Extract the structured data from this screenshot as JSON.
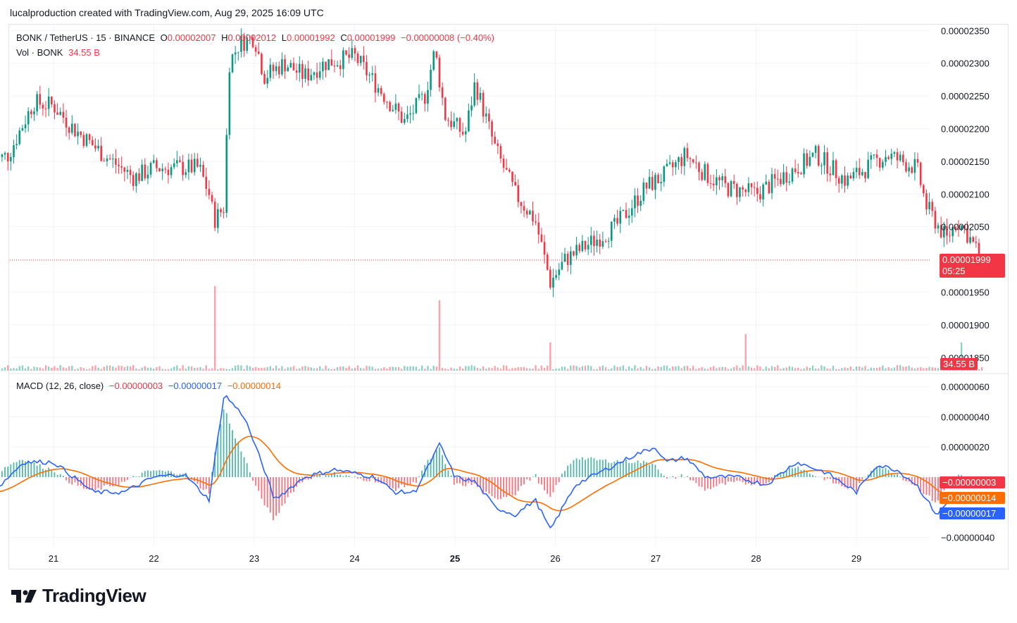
{
  "header": {
    "text": "lucalproduction created with TradingView.com, Aug 29, 2025 16:09 UTC"
  },
  "legend_main": {
    "symbol": "BONK / TetherUS · 15 · BINANCE",
    "o_label": "O",
    "o": "0.00002007",
    "h_label": "H",
    "h": "0.00002012",
    "l_label": "L",
    "l": "0.00001992",
    "c_label": "C",
    "c": "0.00001999",
    "change": "−0.00000008 (−0.40%)"
  },
  "legend_vol": {
    "label": "Vol · BONK",
    "value": "34.55 B"
  },
  "legend_macd": {
    "label": "MACD (12, 26, close)",
    "hist": "−0.00000003",
    "macd": "−0.00000017",
    "signal": "−0.00000014"
  },
  "price_axis": {
    "ticks": [
      "0.00002350",
      "0.00002300",
      "0.00002250",
      "0.00002200",
      "0.00002150",
      "0.00002100",
      "0.00002050",
      "0.00001950",
      "0.00001900",
      "0.00001850"
    ],
    "last_price": "0.00001999",
    "countdown": "05:25",
    "vol_tag": "34.55 B"
  },
  "macd_axis": {
    "ticks": [
      "0.00000060",
      "0.00000040",
      "0.00000020",
      "−0.00000040"
    ],
    "tag_hist": "−0.00000003",
    "tag_signal": "−0.00000014",
    "tag_macd": "−0.00000017"
  },
  "time_axis": {
    "ticks": [
      "21",
      "22",
      "23",
      "24",
      "25",
      "26",
      "27",
      "28",
      "29"
    ]
  },
  "colors": {
    "up": "#089981",
    "down": "#f23645",
    "macd": "#2962ff",
    "signal": "#ff6d00",
    "grid": "#f0f3fa"
  },
  "footer": {
    "brand": "TradingView"
  },
  "chart_data": {
    "type": "candlestick",
    "interval": "15",
    "x": [
      "21",
      "22",
      "23",
      "24",
      "25",
      "26",
      "27",
      "28",
      "29"
    ],
    "close_path": [
      [
        20.4,
        2.15e-05
      ],
      [
        20.55,
        2.16e-05
      ],
      [
        20.8,
        2.24e-05
      ],
      [
        21.0,
        2.235e-05
      ],
      [
        21.2,
        2.2e-05
      ],
      [
        21.5,
        2.16e-05
      ],
      [
        21.8,
        2.125e-05
      ],
      [
        22.0,
        2.14e-05
      ],
      [
        22.2,
        2.14e-05
      ],
      [
        22.45,
        2.14e-05
      ],
      [
        22.55,
        2.1e-05
      ],
      [
        22.6,
        2.06e-05
      ],
      [
        22.7,
        2.08e-05
      ],
      [
        22.75,
        2.3e-05
      ],
      [
        22.85,
        2.33e-05
      ],
      [
        23.0,
        2.34e-05
      ],
      [
        23.1,
        2.28e-05
      ],
      [
        23.3,
        2.3e-05
      ],
      [
        23.5,
        2.28e-05
      ],
      [
        23.7,
        2.3e-05
      ],
      [
        24.0,
        2.31e-05
      ],
      [
        24.2,
        2.27e-05
      ],
      [
        24.5,
        2.21e-05
      ],
      [
        24.7,
        2.25e-05
      ],
      [
        24.8,
        2.32e-05
      ],
      [
        24.9,
        2.22e-05
      ],
      [
        25.1,
        2.19e-05
      ],
      [
        25.2,
        2.27e-05
      ],
      [
        25.4,
        2.17e-05
      ],
      [
        25.6,
        2.1e-05
      ],
      [
        25.8,
        2.06e-05
      ],
      [
        25.95,
        1.965e-05
      ],
      [
        26.1,
        2e-05
      ],
      [
        26.3,
        2.02e-05
      ],
      [
        26.6,
        2.05e-05
      ],
      [
        26.9,
        2.11e-05
      ],
      [
        27.1,
        2.13e-05
      ],
      [
        27.3,
        2.16e-05
      ],
      [
        27.5,
        2.13e-05
      ],
      [
        27.7,
        2.11e-05
      ],
      [
        28.0,
        2.1e-05
      ],
      [
        28.3,
        2.13e-05
      ],
      [
        28.6,
        2.16e-05
      ],
      [
        28.9,
        2.12e-05
      ],
      [
        29.1,
        2.14e-05
      ],
      [
        29.3,
        2.16e-05
      ],
      [
        29.6,
        2.14e-05
      ],
      [
        29.7,
        2.08e-05
      ],
      [
        29.9,
        2.03e-05
      ],
      [
        30.0,
        2.06e-05
      ],
      [
        30.1,
        2.04e-05
      ],
      [
        30.25,
        1.999e-05
      ]
    ],
    "volume_spikes": [
      [
        22.6,
        0.3
      ],
      [
        24.85,
        0.25
      ],
      [
        25.95,
        0.1
      ],
      [
        27.9,
        0.13
      ],
      [
        30.05,
        0.1
      ]
    ],
    "macd_path": [
      [
        20.4,
        -1e-07
      ],
      [
        20.7,
        1e-07
      ],
      [
        21.0,
        1e-07
      ],
      [
        21.4,
        -1e-07
      ],
      [
        21.7,
        -1e-07
      ],
      [
        22.0,
        0.0
      ],
      [
        22.3,
        2e-08
      ],
      [
        22.55,
        -1.5e-07
      ],
      [
        22.7,
        5.5e-07
      ],
      [
        22.9,
        4e-07
      ],
      [
        23.1,
        5e-08
      ],
      [
        23.2,
        -1.5e-07
      ],
      [
        23.5,
        0.0
      ],
      [
        23.8,
        5e-08
      ],
      [
        24.2,
        0.0
      ],
      [
        24.4,
        -1e-07
      ],
      [
        24.6,
        -1e-07
      ],
      [
        24.85,
        2.2e-07
      ],
      [
        25.0,
        0.0
      ],
      [
        25.2,
        -3e-08
      ],
      [
        25.4,
        -2e-07
      ],
      [
        25.6,
        -2.5e-07
      ],
      [
        25.8,
        -1.5e-07
      ],
      [
        25.95,
        -3.5e-07
      ],
      [
        26.2,
        -5e-08
      ],
      [
        26.5,
        5e-08
      ],
      [
        26.8,
        1.5e-07
      ],
      [
        27.0,
        2e-07
      ],
      [
        27.1,
        1e-07
      ],
      [
        27.3,
        1.3e-07
      ],
      [
        27.5,
        0.0
      ],
      [
        27.8,
        0.0
      ],
      [
        28.1,
        -5e-08
      ],
      [
        28.4,
        1e-07
      ],
      [
        28.7,
        3e-08
      ],
      [
        29.0,
        -1e-07
      ],
      [
        29.2,
        8e-08
      ],
      [
        29.4,
        5e-08
      ],
      [
        29.6,
        -5e-08
      ],
      [
        29.8,
        -2.5e-07
      ],
      [
        30.0,
        -1e-07
      ],
      [
        30.25,
        -1.7e-07
      ]
    ]
  }
}
